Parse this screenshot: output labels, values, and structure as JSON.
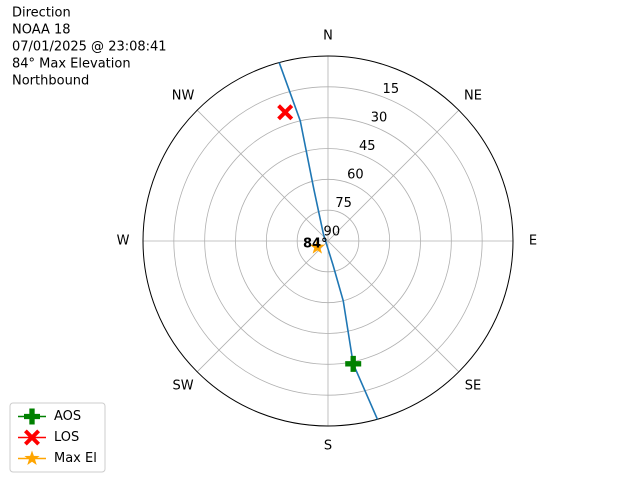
{
  "chart_data": {
    "type": "polar",
    "title_lines": [
      "Direction",
      "NOAA 18",
      "07/01/2025 @ 23:08:41",
      "84° Max Elevation",
      "Northbound"
    ],
    "xlim": [
      0,
      360
    ],
    "xticks": [
      {
        "value": 0,
        "label": "N"
      },
      {
        "value": 45,
        "label": "NE"
      },
      {
        "value": 90,
        "label": "E"
      },
      {
        "value": 135,
        "label": "SE"
      },
      {
        "value": 180,
        "label": "S"
      },
      {
        "value": 225,
        "label": "SW"
      },
      {
        "value": 270,
        "label": "W"
      },
      {
        "value": 315,
        "label": "NW"
      }
    ],
    "ylim": [
      90,
      0
    ],
    "yticks": [
      90,
      75,
      60,
      45,
      30,
      15
    ],
    "grid": true,
    "legend": "lower left",
    "series": [
      {
        "color": "#1f77b4",
        "marker": "line",
        "x": [
          164.5,
          168.4,
          165.7,
          168.2,
          326.3,
          344.7,
          347,
          344.7
        ],
        "values": [
          0,
          29,
          60,
          78,
          86,
          64,
          30,
          0
        ]
      },
      {
        "name": "AOS",
        "color": "#008000",
        "marker": "plus",
        "x": [
          168.4
        ],
        "values": [
          29
        ]
      },
      {
        "name": "LOS",
        "color": "#ff0000",
        "marker": "x",
        "x": [
          341.6
        ],
        "values": [
          24
        ]
      },
      {
        "name": "Max El",
        "color": "#ffa500",
        "marker": "star",
        "x": [
          240
        ],
        "values": [
          84
        ]
      }
    ],
    "annotation": "84°"
  }
}
